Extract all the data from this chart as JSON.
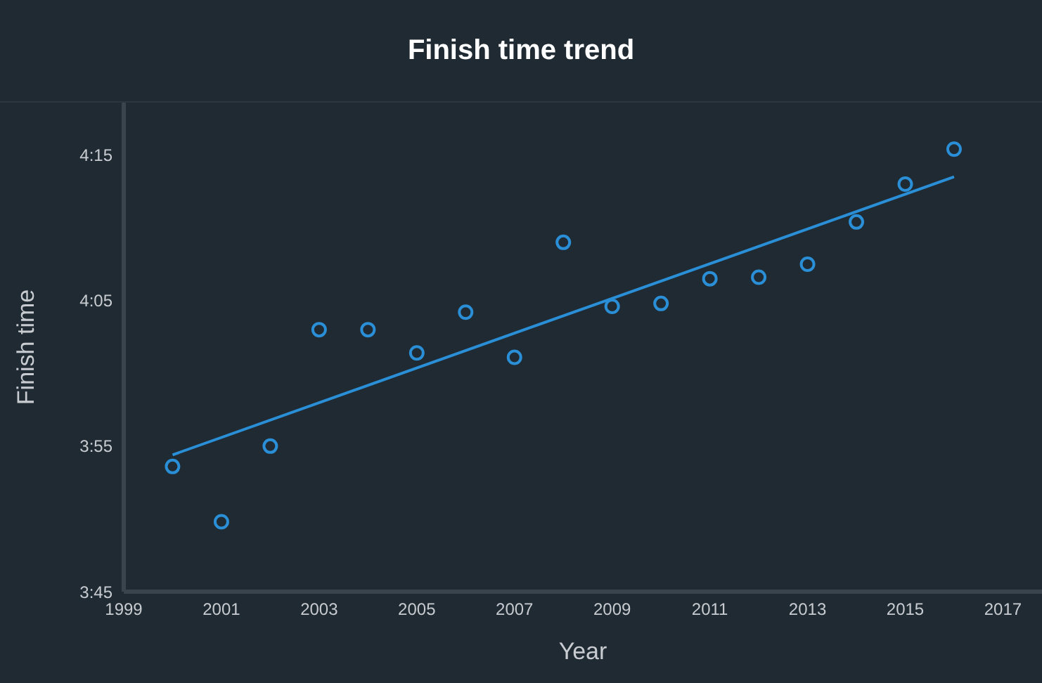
{
  "chart_data": {
    "type": "scatter",
    "title": "Finish time trend",
    "xlabel": "Year",
    "ylabel": "Finish time",
    "x": [
      2000,
      2001,
      2002,
      2003,
      2004,
      2005,
      2006,
      2007,
      2008,
      2009,
      2010,
      2011,
      2012,
      2013,
      2014,
      2015,
      2016
    ],
    "series": [
      {
        "color": "#2a8fd6",
        "marker": "circle",
        "values": [
          233.6,
          229.8,
          235.0,
          243.0,
          243.0,
          241.4,
          244.2,
          241.1,
          249.0,
          244.6,
          244.8,
          246.5,
          246.6,
          247.5,
          250.4,
          253.0,
          255.4
        ]
      },
      {
        "type": "line",
        "color": "#2a8fd6",
        "marker": "none",
        "x": [
          2000,
          2016
        ],
        "values": [
          234.4,
          253.5
        ]
      }
    ],
    "xlim": [
      1999,
      2017.8
    ],
    "xticks": [
      1999,
      2001,
      2003,
      2005,
      2007,
      2009,
      2011,
      2013,
      2015,
      2017
    ],
    "ylim": [
      225,
      258.6
    ],
    "yticks": [
      {
        "value": 225,
        "label": "3:45"
      },
      {
        "value": 235,
        "label": "3:55"
      },
      {
        "value": 245,
        "label": "4:05"
      },
      {
        "value": 255,
        "label": "4:15"
      }
    ],
    "grid": false,
    "legend": false
  }
}
